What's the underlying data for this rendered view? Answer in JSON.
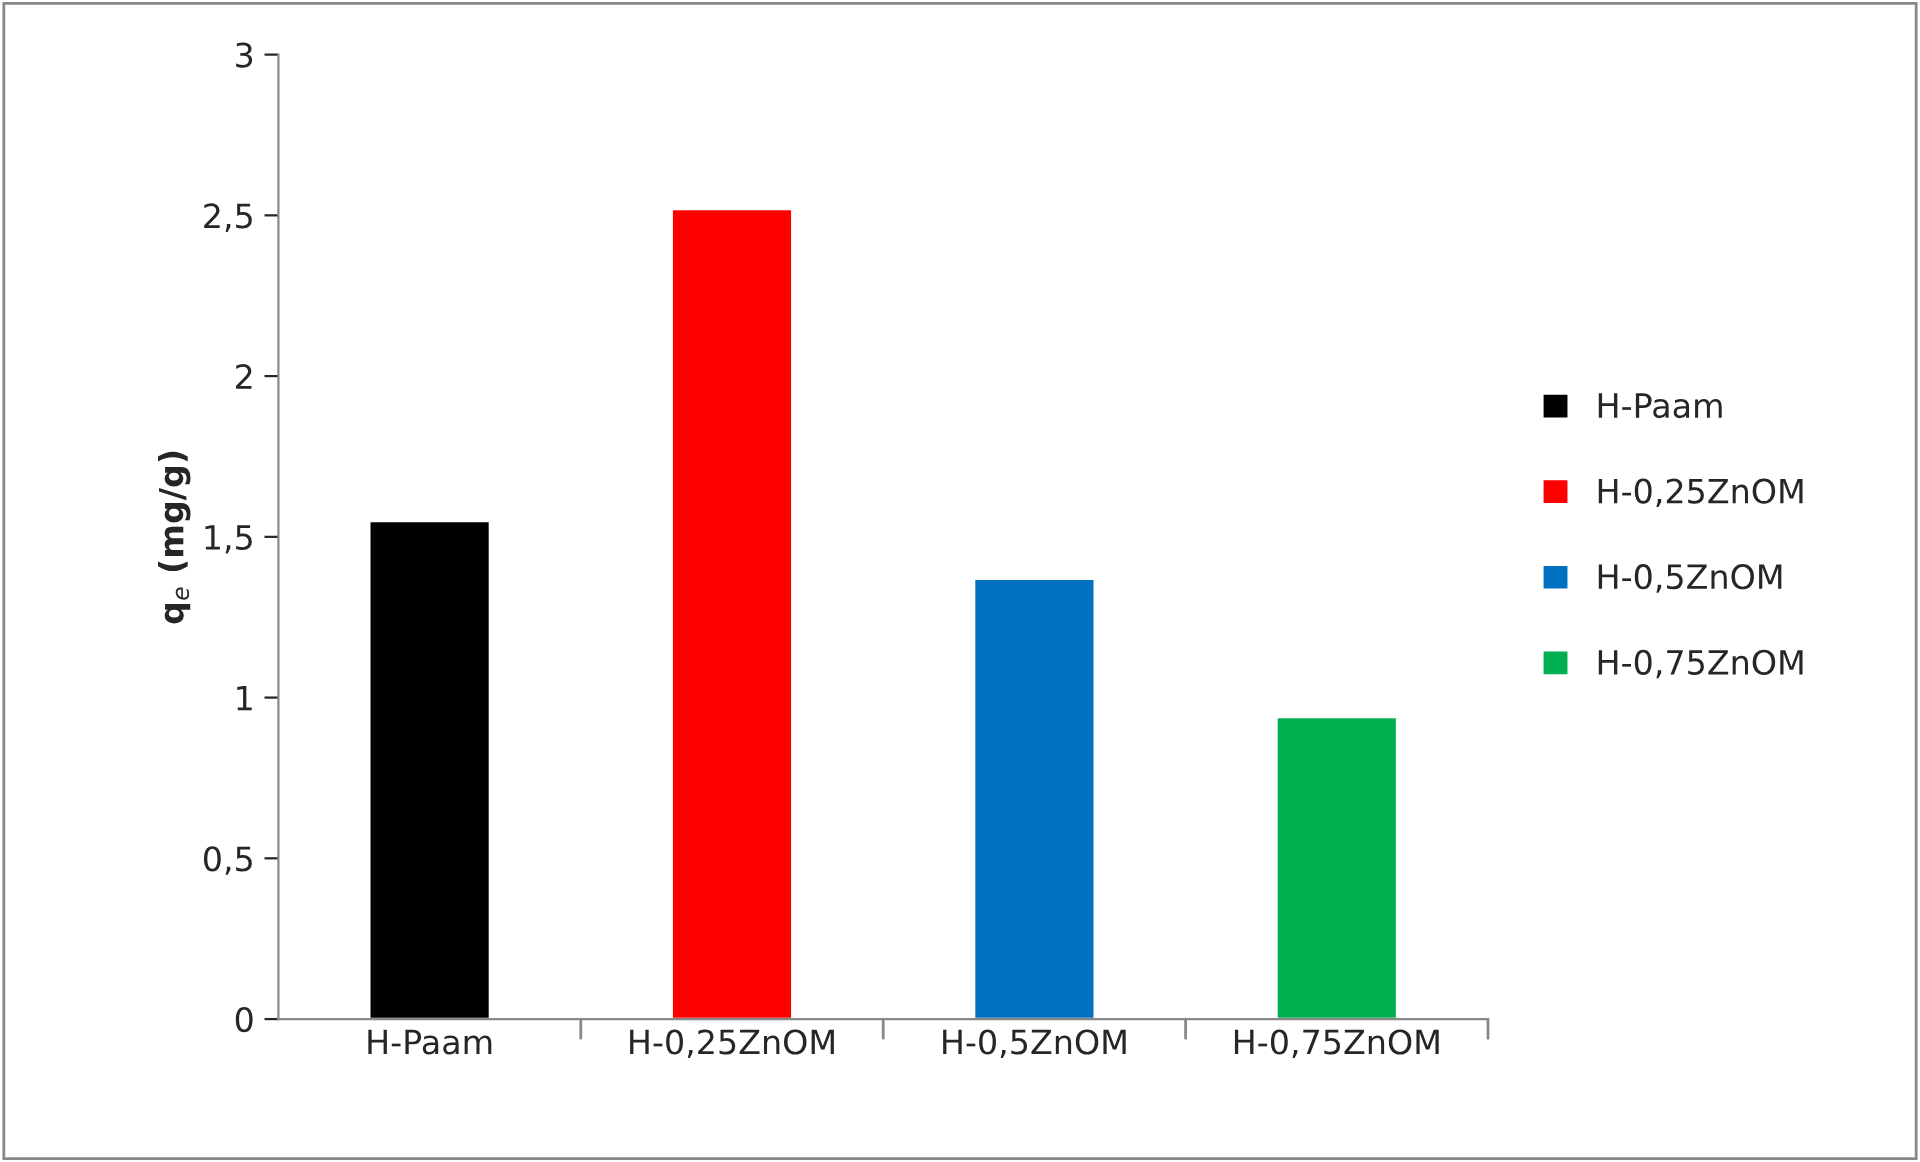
{
  "chart_data": {
    "type": "bar",
    "ylabel": "q$_{e}$ (mg/g)",
    "categories": [
      "H-Paam",
      "H-0,25ZnOM",
      "H-0,5ZnOM",
      "H-0,75ZnOM"
    ],
    "series": [
      {
        "name": "H-Paam",
        "color": "#000000",
        "values": [
          1.55,
          null,
          null,
          null
        ]
      },
      {
        "name": "H-0,25ZnOM",
        "color": "#ff0000",
        "values": [
          null,
          2.52,
          null,
          null
        ]
      },
      {
        "name": "H-0,5ZnOM",
        "color": "#0070c0",
        "values": [
          null,
          null,
          1.37,
          null
        ]
      },
      {
        "name": "H-0,75ZnOM",
        "color": "#00b050",
        "values": [
          null,
          null,
          null,
          0.94
        ]
      }
    ],
    "ylim": [
      0,
      3
    ],
    "yticks": [
      0,
      {
        "value": 0.5,
        "label": "0,5"
      },
      1,
      {
        "value": 1.5,
        "label": "1,5"
      },
      2,
      {
        "value": 2.5,
        "label": "2,5"
      },
      3
    ],
    "grid": false,
    "legend": "right"
  }
}
